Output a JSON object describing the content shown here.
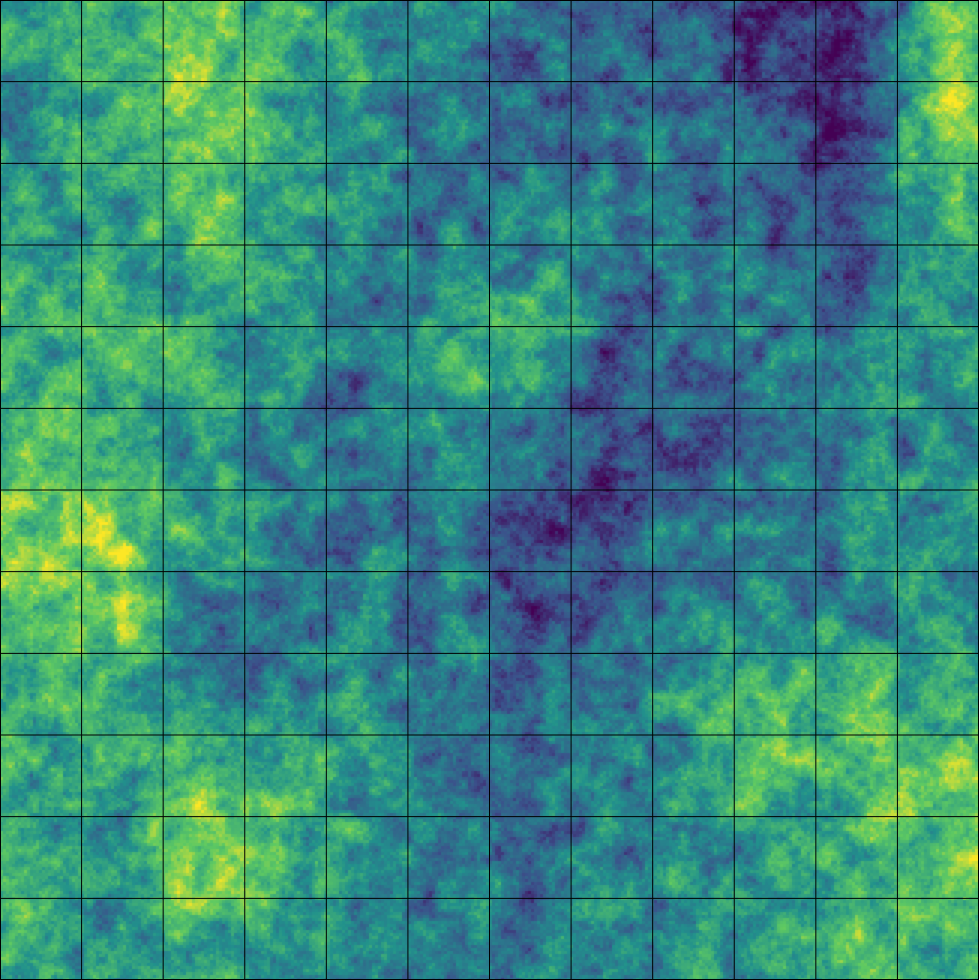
{
  "chart_data": {
    "type": "heatmap",
    "title": "",
    "xlabel": "",
    "ylabel": "",
    "grid": true,
    "grid_rows": 12,
    "grid_cols": 12,
    "colormap": "viridis",
    "colormap_stops": [
      "#440154",
      "#3b528b",
      "#21918c",
      "#5ec962",
      "#fde725"
    ],
    "grid_line_color": "#000000",
    "cell_levels": [
      [
        0.55,
        0.6,
        0.72,
        0.62,
        0.5,
        0.42,
        0.3,
        0.35,
        0.3,
        0.18,
        0.1,
        0.75
      ],
      [
        0.5,
        0.65,
        0.85,
        0.6,
        0.48,
        0.4,
        0.35,
        0.38,
        0.35,
        0.25,
        0.12,
        0.85
      ],
      [
        0.52,
        0.55,
        0.75,
        0.55,
        0.45,
        0.35,
        0.4,
        0.42,
        0.38,
        0.3,
        0.25,
        0.65
      ],
      [
        0.6,
        0.58,
        0.55,
        0.5,
        0.38,
        0.5,
        0.55,
        0.4,
        0.38,
        0.35,
        0.35,
        0.55
      ],
      [
        0.6,
        0.62,
        0.58,
        0.48,
        0.35,
        0.65,
        0.55,
        0.22,
        0.35,
        0.4,
        0.45,
        0.55
      ],
      [
        0.65,
        0.55,
        0.55,
        0.45,
        0.4,
        0.45,
        0.4,
        0.12,
        0.25,
        0.38,
        0.42,
        0.5
      ],
      [
        0.78,
        0.85,
        0.5,
        0.4,
        0.42,
        0.4,
        0.22,
        0.25,
        0.4,
        0.45,
        0.4,
        0.48
      ],
      [
        0.7,
        0.78,
        0.45,
        0.42,
        0.45,
        0.42,
        0.25,
        0.35,
        0.45,
        0.5,
        0.45,
        0.5
      ],
      [
        0.68,
        0.62,
        0.45,
        0.42,
        0.48,
        0.42,
        0.35,
        0.4,
        0.55,
        0.65,
        0.72,
        0.6
      ],
      [
        0.6,
        0.55,
        0.72,
        0.58,
        0.52,
        0.4,
        0.38,
        0.45,
        0.55,
        0.65,
        0.6,
        0.8
      ],
      [
        0.58,
        0.55,
        0.82,
        0.62,
        0.55,
        0.42,
        0.35,
        0.42,
        0.55,
        0.5,
        0.6,
        0.75
      ],
      [
        0.6,
        0.52,
        0.65,
        0.55,
        0.4,
        0.35,
        0.4,
        0.45,
        0.52,
        0.55,
        0.7,
        0.6
      ]
    ]
  }
}
